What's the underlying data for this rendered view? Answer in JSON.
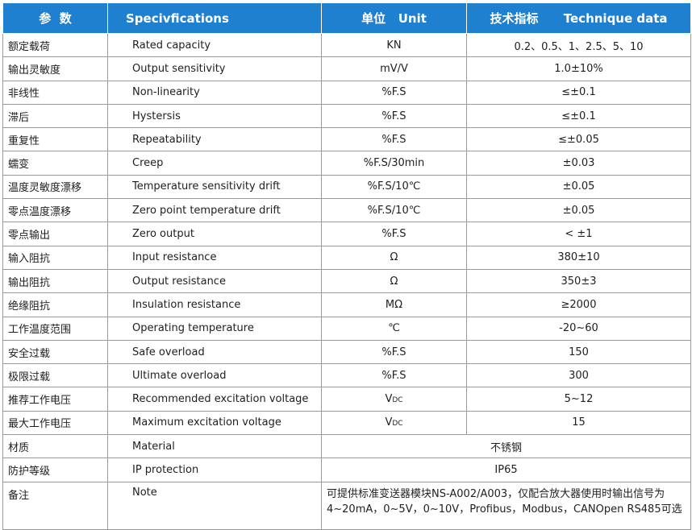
{
  "header": [
    "参  数",
    "Specivfications",
    "单位   Unit",
    "技术指标      Technique data"
  ],
  "rows": [
    [
      "额定载荷",
      "Rated capacity",
      "KN",
      "0.2、0.5、1、2.5、5、10"
    ],
    [
      "输出灵敏度",
      "Output sensitivity",
      "mV/V",
      "1.0±10%"
    ],
    [
      "非线性",
      "Non-linearity",
      "%F.S",
      "≤±0.1"
    ],
    [
      "滞后",
      "Hystersis",
      "%F.S",
      "≤±0.1"
    ],
    [
      "重复性",
      "Repeatability",
      "%F.S",
      "≤±0.05"
    ],
    [
      "蠕变",
      "Creep",
      "%F.S/30min",
      "±0.03"
    ],
    [
      "温度灵敏度漂移",
      "Temperature sensitivity drift",
      "%F.S/10℃",
      "±0.05"
    ],
    [
      "零点温度漂移",
      "Zero point temperature drift",
      "%F.S/10℃",
      "±0.05"
    ],
    [
      "零点输出",
      "Zero output",
      "%F.S",
      "< ±1"
    ],
    [
      "输入阻抗",
      "Input resistance",
      "Ω",
      "380±10"
    ],
    [
      "输出阻抗",
      "Output resistance",
      "Ω",
      "350±3"
    ],
    [
      "绝缘阻抗",
      "Insulation resistance",
      "MΩ",
      "≥2000"
    ],
    [
      "工作温度范围",
      "Operating temperature",
      "℃",
      "-20~60"
    ],
    [
      "安全过载",
      "Safe overload",
      "%F.S",
      "150"
    ],
    [
      "极限过载",
      "Ultimate overload",
      "%F.S",
      "300"
    ],
    [
      "推荐工作电压",
      "Recommended excitation voltage",
      "Vdc",
      "5~12"
    ],
    [
      "最大工作电压",
      "Maximum excitation voltage",
      "Vdc",
      "15"
    ],
    [
      "材质",
      "Material",
      "不锈钢"
    ],
    [
      "防护等级",
      "IP protection",
      "IP65"
    ],
    [
      "备注",
      "Note",
      [
        "可提供标准变送器模块NS-A002/A003，仅配合放大器使用时输出信号为",
        "4~20mA，0~5V，0~10V，Profibus，Modbus，CANOpen RS485可选"
      ]
    ]
  ]
}
